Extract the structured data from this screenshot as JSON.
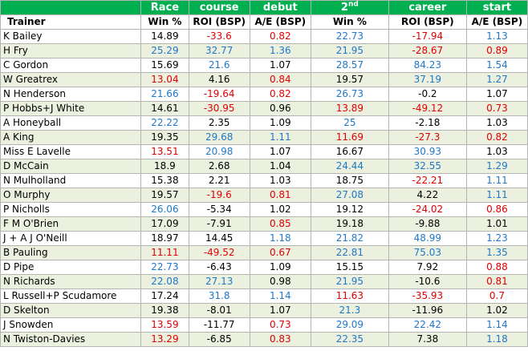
{
  "header_top": [
    "",
    "Race",
    "course",
    "debut",
    "2",
    "career",
    "start"
  ],
  "header_top_sup": "nd",
  "header_bottom": [
    "Trainer",
    "Win %",
    "ROI (BSP)",
    "A/E (BSP)",
    "Win %",
    "ROI (BSP)",
    "A/E (BSP)"
  ],
  "colors": {
    "header_bg": "#00b050",
    "stripe": "#ebf1de",
    "blue": "#1f77c9",
    "red": "#e00000"
  },
  "rows": [
    {
      "trainer": "K Bailey",
      "cells": [
        [
          "14.89",
          "black"
        ],
        [
          "-33.6",
          "red"
        ],
        [
          "0.82",
          "red"
        ],
        [
          "22.73",
          "blue"
        ],
        [
          "-17.94",
          "red"
        ],
        [
          "1.13",
          "blue"
        ]
      ]
    },
    {
      "trainer": "H Fry",
      "cells": [
        [
          "25.29",
          "blue"
        ],
        [
          "32.77",
          "blue"
        ],
        [
          "1.36",
          "blue"
        ],
        [
          "21.95",
          "blue"
        ],
        [
          "-28.67",
          "red"
        ],
        [
          "0.89",
          "red"
        ]
      ]
    },
    {
      "trainer": "C Gordon",
      "cells": [
        [
          "15.69",
          "black"
        ],
        [
          "21.6",
          "blue"
        ],
        [
          "1.07",
          "black"
        ],
        [
          "28.57",
          "blue"
        ],
        [
          "84.23",
          "blue"
        ],
        [
          "1.54",
          "blue"
        ]
      ]
    },
    {
      "trainer": "W Greatrex",
      "cells": [
        [
          "13.04",
          "red"
        ],
        [
          "4.16",
          "black"
        ],
        [
          "0.84",
          "red"
        ],
        [
          "19.57",
          "black"
        ],
        [
          "37.19",
          "blue"
        ],
        [
          "1.27",
          "blue"
        ]
      ]
    },
    {
      "trainer": "N Henderson",
      "cells": [
        [
          "21.66",
          "blue"
        ],
        [
          "-19.64",
          "red"
        ],
        [
          "0.82",
          "red"
        ],
        [
          "26.73",
          "blue"
        ],
        [
          "-0.2",
          "black"
        ],
        [
          "1.07",
          "black"
        ]
      ]
    },
    {
      "trainer": "P Hobbs+J White",
      "cells": [
        [
          "14.61",
          "black"
        ],
        [
          "-30.95",
          "red"
        ],
        [
          "0.96",
          "black"
        ],
        [
          "13.89",
          "red"
        ],
        [
          "-49.12",
          "red"
        ],
        [
          "0.73",
          "red"
        ]
      ]
    },
    {
      "trainer": "A Honeyball",
      "cells": [
        [
          "22.22",
          "blue"
        ],
        [
          "2.35",
          "black"
        ],
        [
          "1.09",
          "black"
        ],
        [
          "25",
          "blue"
        ],
        [
          "-2.18",
          "black"
        ],
        [
          "1.03",
          "black"
        ]
      ]
    },
    {
      "trainer": "A King",
      "cells": [
        [
          "19.35",
          "black"
        ],
        [
          "29.68",
          "blue"
        ],
        [
          "1.11",
          "blue"
        ],
        [
          "11.69",
          "red"
        ],
        [
          "-27.3",
          "red"
        ],
        [
          "0.82",
          "red"
        ]
      ]
    },
    {
      "trainer": "Miss E Lavelle",
      "cells": [
        [
          "13.51",
          "red"
        ],
        [
          "20.98",
          "blue"
        ],
        [
          "1.07",
          "black"
        ],
        [
          "16.67",
          "black"
        ],
        [
          "30.93",
          "blue"
        ],
        [
          "1.03",
          "black"
        ]
      ]
    },
    {
      "trainer": "D McCain",
      "cells": [
        [
          "18.9",
          "black"
        ],
        [
          "2.68",
          "black"
        ],
        [
          "1.04",
          "black"
        ],
        [
          "24.44",
          "blue"
        ],
        [
          "32.55",
          "blue"
        ],
        [
          "1.29",
          "blue"
        ]
      ]
    },
    {
      "trainer": "N Mulholland",
      "cells": [
        [
          "15.38",
          "black"
        ],
        [
          "2.21",
          "black"
        ],
        [
          "1.03",
          "black"
        ],
        [
          "18.75",
          "black"
        ],
        [
          "-22.21",
          "red"
        ],
        [
          "1.11",
          "blue"
        ]
      ]
    },
    {
      "trainer": "O Murphy",
      "cells": [
        [
          "19.57",
          "black"
        ],
        [
          "-19.6",
          "red"
        ],
        [
          "0.81",
          "red"
        ],
        [
          "27.08",
          "blue"
        ],
        [
          "4.22",
          "black"
        ],
        [
          "1.11",
          "blue"
        ]
      ]
    },
    {
      "trainer": "P Nicholls",
      "cells": [
        [
          "26.06",
          "blue"
        ],
        [
          "-5.34",
          "black"
        ],
        [
          "1.02",
          "black"
        ],
        [
          "19.12",
          "black"
        ],
        [
          "-24.02",
          "red"
        ],
        [
          "0.86",
          "red"
        ]
      ]
    },
    {
      "trainer": "F M O'Brien",
      "cells": [
        [
          "17.09",
          "black"
        ],
        [
          "-7.91",
          "black"
        ],
        [
          "0.85",
          "red"
        ],
        [
          "19.18",
          "black"
        ],
        [
          "-9.88",
          "black"
        ],
        [
          "1.01",
          "black"
        ]
      ]
    },
    {
      "trainer": "J + A J O'Neill",
      "cells": [
        [
          "18.97",
          "black"
        ],
        [
          "14.45",
          "black"
        ],
        [
          "1.18",
          "blue"
        ],
        [
          "21.82",
          "blue"
        ],
        [
          "48.99",
          "blue"
        ],
        [
          "1.23",
          "blue"
        ]
      ]
    },
    {
      "trainer": "B Pauling",
      "cells": [
        [
          "11.11",
          "red"
        ],
        [
          "-49.52",
          "red"
        ],
        [
          "0.67",
          "red"
        ],
        [
          "22.81",
          "blue"
        ],
        [
          "75.03",
          "blue"
        ],
        [
          "1.35",
          "blue"
        ]
      ]
    },
    {
      "trainer": "D Pipe",
      "cells": [
        [
          "22.73",
          "blue"
        ],
        [
          "-6.43",
          "black"
        ],
        [
          "1.09",
          "black"
        ],
        [
          "15.15",
          "black"
        ],
        [
          "7.92",
          "black"
        ],
        [
          "0.88",
          "red"
        ]
      ]
    },
    {
      "trainer": "N Richards",
      "cells": [
        [
          "22.08",
          "blue"
        ],
        [
          "27.13",
          "blue"
        ],
        [
          "0.98",
          "black"
        ],
        [
          "21.95",
          "blue"
        ],
        [
          "-10.6",
          "black"
        ],
        [
          "0.81",
          "red"
        ]
      ]
    },
    {
      "trainer": "L Russell+P Scudamore",
      "cells": [
        [
          "17.24",
          "black"
        ],
        [
          "31.8",
          "blue"
        ],
        [
          "1.14",
          "blue"
        ],
        [
          "11.63",
          "red"
        ],
        [
          "-35.93",
          "red"
        ],
        [
          "0.7",
          "red"
        ]
      ]
    },
    {
      "trainer": "D Skelton",
      "cells": [
        [
          "19.38",
          "black"
        ],
        [
          "-8.01",
          "black"
        ],
        [
          "1.07",
          "black"
        ],
        [
          "21.3",
          "blue"
        ],
        [
          "-11.96",
          "black"
        ],
        [
          "1.02",
          "black"
        ]
      ]
    },
    {
      "trainer": "J Snowden",
      "cells": [
        [
          "13.59",
          "red"
        ],
        [
          "-11.77",
          "black"
        ],
        [
          "0.73",
          "red"
        ],
        [
          "29.09",
          "blue"
        ],
        [
          "22.42",
          "blue"
        ],
        [
          "1.14",
          "blue"
        ]
      ]
    },
    {
      "trainer": "N Twiston-Davies",
      "cells": [
        [
          "13.29",
          "red"
        ],
        [
          "-6.85",
          "black"
        ],
        [
          "0.83",
          "red"
        ],
        [
          "22.35",
          "blue"
        ],
        [
          "7.38",
          "black"
        ],
        [
          "1.18",
          "blue"
        ]
      ]
    }
  ]
}
